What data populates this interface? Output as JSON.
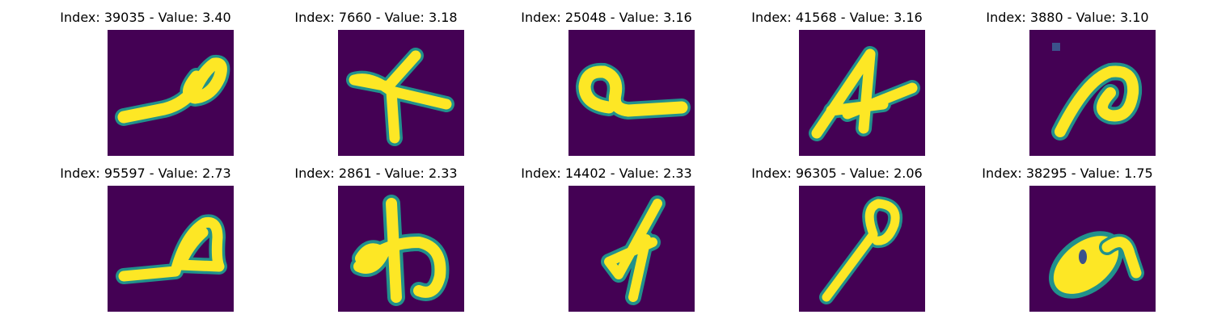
{
  "colormap": {
    "background": "#440154",
    "edge": "#21918c",
    "stroke": "#fde725"
  },
  "panels": [
    {
      "title": "Index: 39035 - Value: 3.40",
      "glyph": "loop-left-tail-icon"
    },
    {
      "title": "Index: 7660 - Value: 3.18",
      "glyph": "four-cross-icon"
    },
    {
      "title": "Index: 25048 - Value: 3.16",
      "glyph": "loop-right-tail-icon"
    },
    {
      "title": "Index: 41568 - Value: 3.16",
      "glyph": "slanted-a-icon"
    },
    {
      "title": "Index: 3880 - Value: 3.10",
      "glyph": "hook-arch-icon"
    },
    {
      "title": "Index: 95597 - Value: 2.73",
      "glyph": "loop-underline-icon"
    },
    {
      "title": "Index: 2861 - Value: 2.33",
      "glyph": "cursive-shape-icon"
    },
    {
      "title": "Index: 14402 - Value: 2.33",
      "glyph": "slanted-four-icon"
    },
    {
      "title": "Index: 96305 - Value: 2.06",
      "glyph": "loop-stick-icon"
    },
    {
      "title": "Index: 38295 - Value: 1.75",
      "glyph": "blob-swirl-icon"
    }
  ]
}
